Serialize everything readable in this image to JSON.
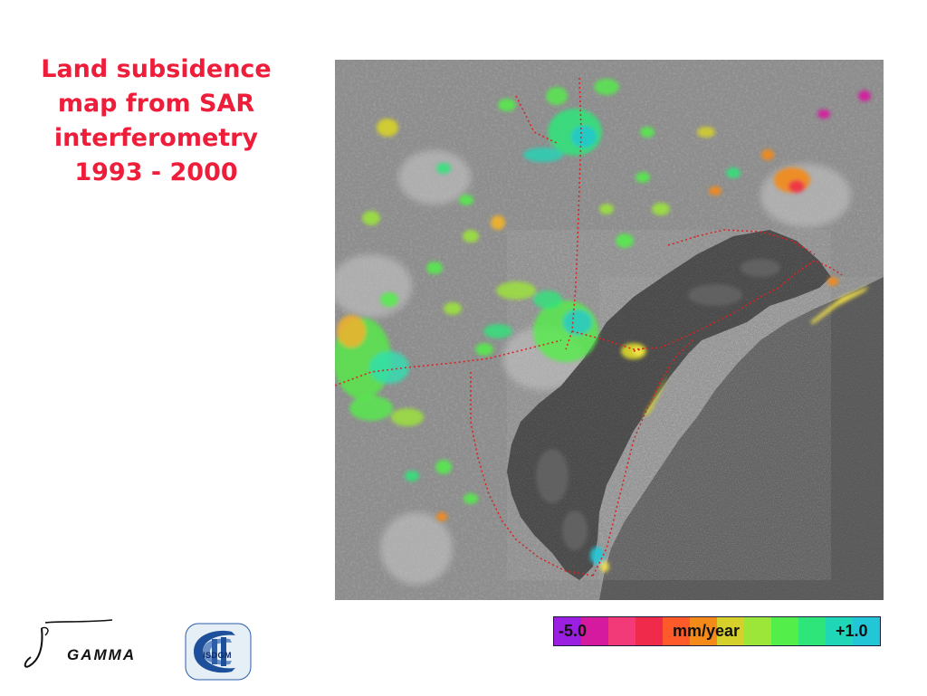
{
  "title": {
    "lines": [
      "Land subsidence",
      "map from SAR",
      "interferometry",
      "1993 - 2000"
    ]
  },
  "legend": {
    "min_label": "-5.0",
    "unit_label": "mm/year",
    "max_label": "+1.0",
    "colors": [
      "#9a1fe0",
      "#d61aa0",
      "#f23a78",
      "#ef2a4a",
      "#ff5a2a",
      "#f48a1a",
      "#d6d12a",
      "#9ce63a",
      "#54ee4a",
      "#2ee57a",
      "#1fd6b6",
      "#22c6d6"
    ]
  },
  "logos": {
    "gamma": "GAMMA",
    "isdgm": "ISDGM"
  }
}
